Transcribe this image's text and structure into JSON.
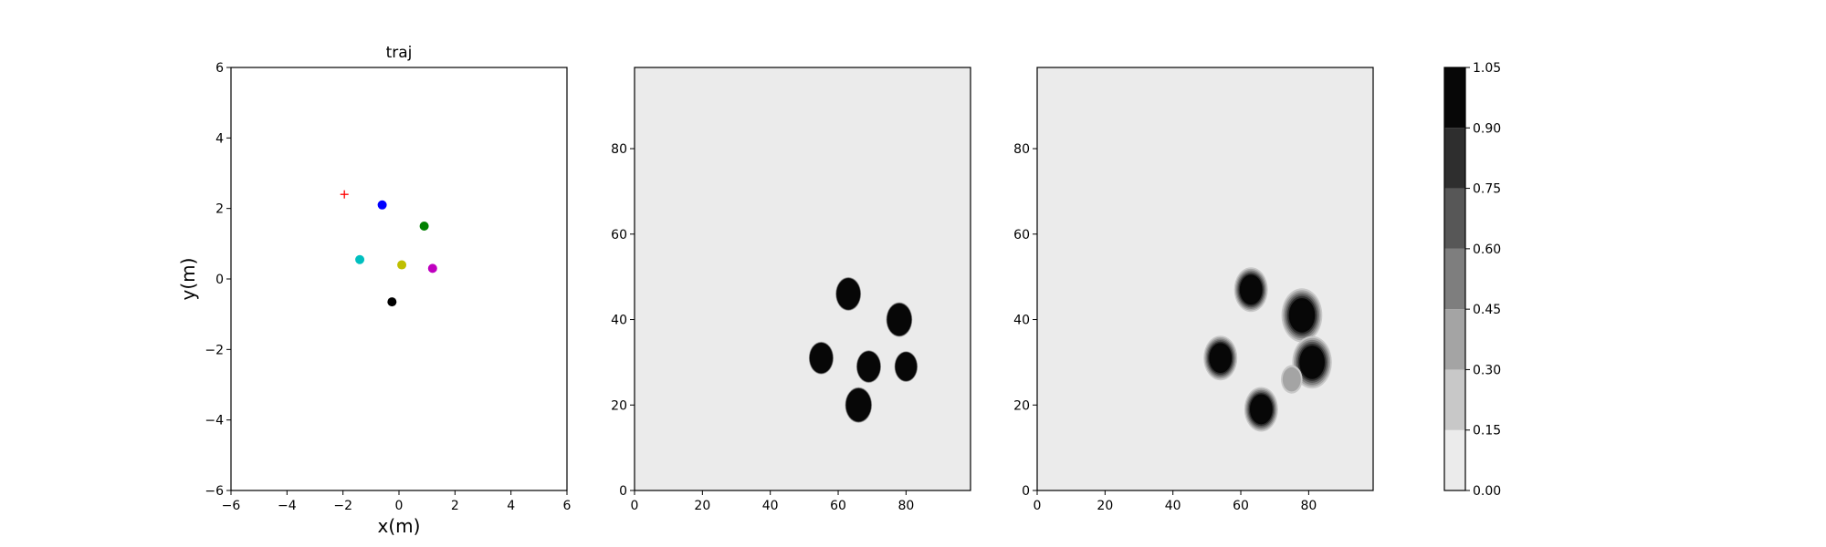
{
  "chart_data": [
    {
      "type": "scatter",
      "title": "traj",
      "xlabel": "x(m)",
      "ylabel": "y(m)",
      "xlim": [
        -6,
        6
      ],
      "ylim": [
        -6,
        6
      ],
      "xticks": [
        "−6",
        "−4",
        "−2",
        "0",
        "2",
        "4",
        "6"
      ],
      "yticks": [
        "−6",
        "−4",
        "−2",
        "0",
        "2",
        "4",
        "6"
      ],
      "grid": false,
      "points": [
        {
          "x": -0.6,
          "y": 2.1,
          "color": "#0000ff",
          "marker": "circle"
        },
        {
          "x": 0.9,
          "y": 1.5,
          "color": "#008000",
          "marker": "circle"
        },
        {
          "x": -1.4,
          "y": 0.55,
          "color": "#00bfbf",
          "marker": "circle"
        },
        {
          "x": 0.1,
          "y": 0.4,
          "color": "#bfbf00",
          "marker": "circle"
        },
        {
          "x": 1.2,
          "y": 0.3,
          "color": "#bf00bf",
          "marker": "circle"
        },
        {
          "x": -0.25,
          "y": -0.65,
          "color": "#000000",
          "marker": "circle"
        },
        {
          "x": -1.95,
          "y": 2.4,
          "color": "#ff0000",
          "marker": "plus"
        }
      ]
    },
    {
      "type": "heatmap",
      "xlim": [
        0,
        99
      ],
      "ylim": [
        0,
        99
      ],
      "xticks": [
        "0",
        "20",
        "40",
        "60",
        "80"
      ],
      "yticks": [
        "0",
        "20",
        "40",
        "60",
        "80"
      ],
      "background": "#ebebeb",
      "blobs": [
        {
          "x": 63,
          "y": 46,
          "r": 3.4,
          "value": 1.0,
          "halo": 0.05
        },
        {
          "x": 78,
          "y": 40,
          "r": 3.5,
          "value": 1.0,
          "halo": 0.05
        },
        {
          "x": 55,
          "y": 31,
          "r": 3.3,
          "value": 1.0,
          "halo": 0.05
        },
        {
          "x": 69,
          "y": 29,
          "r": 3.3,
          "value": 1.0,
          "halo": 0.05
        },
        {
          "x": 80,
          "y": 29,
          "r": 3.1,
          "value": 1.0,
          "halo": 0.05
        },
        {
          "x": 66,
          "y": 20,
          "r": 3.6,
          "value": 1.0,
          "halo": 0.05
        }
      ]
    },
    {
      "type": "heatmap",
      "xlim": [
        0,
        99
      ],
      "ylim": [
        0,
        99
      ],
      "xticks": [
        "0",
        "20",
        "40",
        "60",
        "80"
      ],
      "yticks": [
        "0",
        "20",
        "40",
        "60",
        "80"
      ],
      "background": "#ebebeb",
      "blobs": [
        {
          "x": 63,
          "y": 47,
          "r": 3.0,
          "value": 1.0,
          "halo": 0.3
        },
        {
          "x": 78,
          "y": 41,
          "r": 3.4,
          "value": 1.0,
          "halo": 0.35
        },
        {
          "x": 54,
          "y": 31,
          "r": 3.0,
          "value": 1.0,
          "halo": 0.3
        },
        {
          "x": 81,
          "y": 30,
          "r": 3.3,
          "value": 1.0,
          "halo": 0.35
        },
        {
          "x": 66,
          "y": 19,
          "r": 3.0,
          "value": 1.0,
          "halo": 0.3
        },
        {
          "x": 75,
          "y": 26,
          "r": 2.2,
          "value": 0.35,
          "halo": 0.2
        }
      ]
    }
  ],
  "colorbar": {
    "levels": [
      "0.00",
      "0.15",
      "0.30",
      "0.45",
      "0.60",
      "0.75",
      "0.90",
      "1.05"
    ],
    "colors": [
      "#ebebeb",
      "#c8c8c8",
      "#a4a4a4",
      "#7e7e7e",
      "#575757",
      "#2e2e2e",
      "#070707"
    ]
  }
}
